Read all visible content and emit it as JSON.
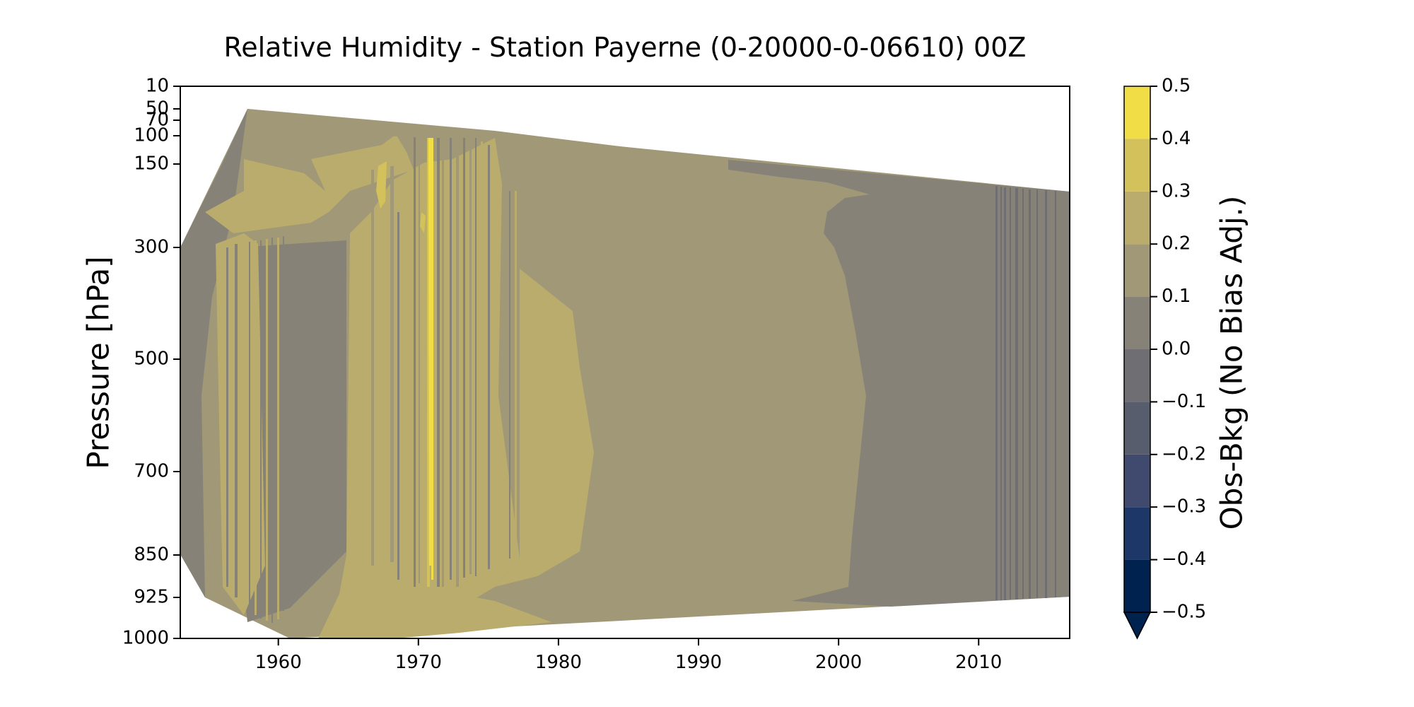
{
  "chart_data": {
    "type": "heatmap",
    "subtype": "filled-contour",
    "title": "Relative Humidity - Station Payerne (0-20000-0-06610) 00Z",
    "xlabel": "",
    "ylabel": "Pressure [hPa]",
    "xlim": [
      1953,
      2016.5
    ],
    "ylim": [
      1000,
      10
    ],
    "y_scale": "custom pressure axis",
    "xticks": [
      1960,
      1970,
      1980,
      1990,
      2000,
      2010
    ],
    "yticks": [
      10,
      50,
      70,
      100,
      150,
      300,
      500,
      700,
      850,
      925,
      1000
    ],
    "colorbar": {
      "label": "Obs-Bkg (No Bias Adj.)",
      "levels": [
        -0.5,
        -0.4,
        -0.3,
        -0.2,
        -0.1,
        0.0,
        0.1,
        0.2,
        0.3,
        0.4,
        0.5
      ],
      "tick_labels": [
        "−0.5",
        "−0.4",
        "−0.3",
        "−0.2",
        "−0.1",
        "0.0",
        "0.1",
        "0.2",
        "0.3",
        "0.4",
        "0.5"
      ],
      "colors": [
        "#00224e",
        "#1d3769",
        "#3f4a6e",
        "#575d6d",
        "#6f6f73",
        "#868278",
        "#a09877",
        "#b9ac6d",
        "#d3c15b",
        "#f1dd45"
      ],
      "extend": "min",
      "under_color": "#00224e"
    },
    "regions": [
      {
        "level": "0.1-0.2",
        "x": [
          1958.2,
          1966.0
        ],
        "p": [
          50,
          1000
        ],
        "note": "early period mostly 0.1-0.2 with 0.2-0.3 streaks"
      },
      {
        "level": "0.2-0.3",
        "x": [
          1966.0,
          1977.5
        ],
        "p": [
          100,
          1000
        ],
        "note": "many vertical 0.2-0.3 stripes, 0.4-0.5 streak near 1971"
      },
      {
        "level": "0.2-0.3",
        "x": [
          1977.5,
          1983.0
        ],
        "p": [
          300,
          900
        ],
        "note": "broad 0.2-0.3 patch"
      },
      {
        "level": "0.1-0.2",
        "x": [
          1983.0,
          2001.0
        ],
        "p": [
          70,
          1000
        ],
        "note": "dominant 0.1-0.2"
      },
      {
        "level": "0.0-0.1",
        "x": [
          2001.0,
          2016.5
        ],
        "p": [
          150,
          925
        ],
        "note": "late period 0.0-0.1 with -0.1-0.0 stripes after 2011"
      }
    ]
  }
}
